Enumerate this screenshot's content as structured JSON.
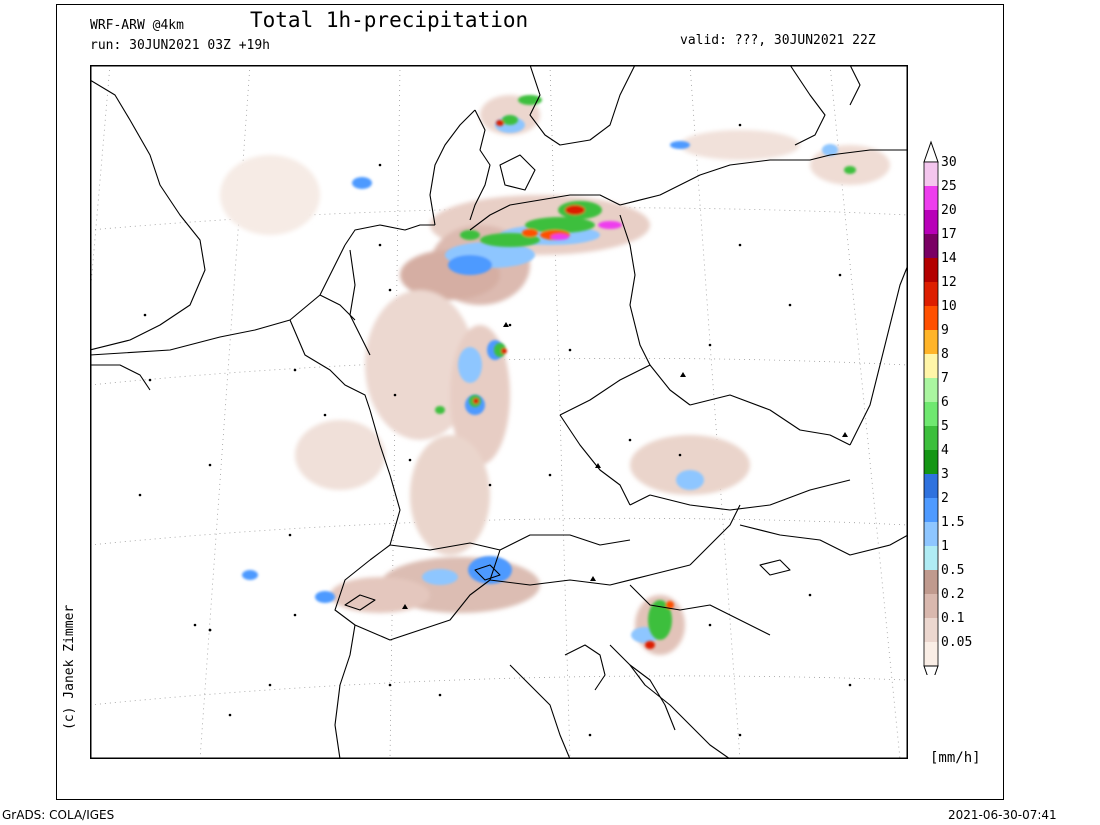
{
  "header": {
    "model": "WRF-ARW @4km",
    "run": "run: 30JUN2021 03Z +19h",
    "title": "Total 1h-precipitation",
    "valid": "valid: ???, 30JUN2021 22Z"
  },
  "credit": "(c) Janek Zimmer",
  "legend": {
    "units": "[mm/h]",
    "levels": [
      {
        "label": "30",
        "color": "#f4c6ee"
      },
      {
        "label": "25",
        "color": "#ee3dee"
      },
      {
        "label": "20",
        "color": "#b800b8"
      },
      {
        "label": "17",
        "color": "#7a0064"
      },
      {
        "label": "14",
        "color": "#b30000"
      },
      {
        "label": "12",
        "color": "#dd1e00"
      },
      {
        "label": "10",
        "color": "#ff5000"
      },
      {
        "label": "9",
        "color": "#ffb429"
      },
      {
        "label": "8",
        "color": "#fff5a8"
      },
      {
        "label": "7",
        "color": "#aaf5a0"
      },
      {
        "label": "6",
        "color": "#6fe870"
      },
      {
        "label": "5",
        "color": "#3cbf3c"
      },
      {
        "label": "4",
        "color": "#149614"
      },
      {
        "label": "3",
        "color": "#2f72de"
      },
      {
        "label": "2",
        "color": "#4e9aff"
      },
      {
        "label": "1.5",
        "color": "#8ec6ff"
      },
      {
        "label": "1",
        "color": "#b0ecf4"
      },
      {
        "label": "0.5",
        "color": "#c09a8e"
      },
      {
        "label": "0.2",
        "color": "#d9b8ae"
      },
      {
        "label": "0.1",
        "color": "#ecd7cf"
      },
      {
        "label": "0.05",
        "color": "#faeee6"
      }
    ]
  },
  "footer": {
    "left": "GrADS: COLA/IGES",
    "right": "2021-06-30-07:41"
  }
}
